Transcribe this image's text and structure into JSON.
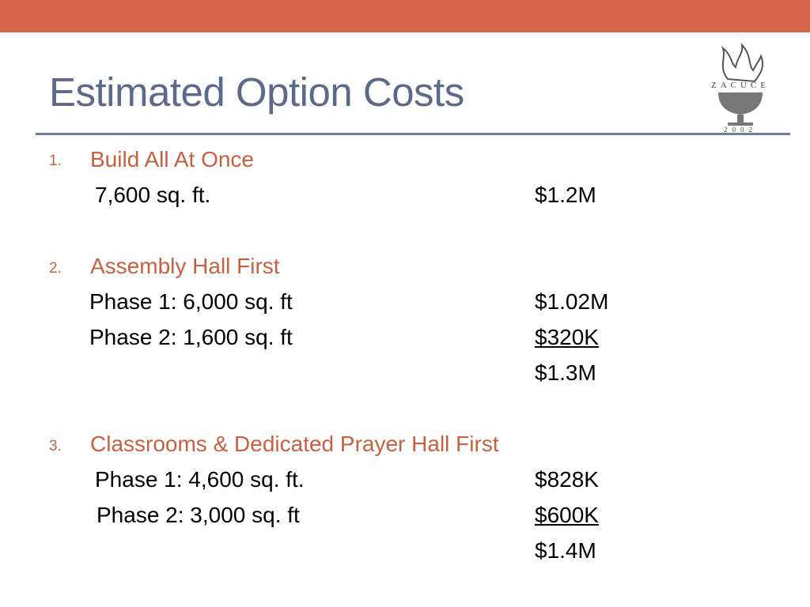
{
  "header": {
    "title": "Estimated Option Costs"
  },
  "logo": {
    "name": "ZACUCE",
    "year": "2002"
  },
  "options": [
    {
      "number": "1.",
      "title": "Build All At Once",
      "rows": [
        {
          "label": "7,600 sq. ft.",
          "amount": "$1.2M"
        }
      ]
    },
    {
      "number": "2.",
      "title": "Assembly Hall First",
      "rows": [
        {
          "label": "Phase 1: 6,000 sq. ft",
          "amount": "$1.02M"
        },
        {
          "label": "Phase 2: 1,600 sq. ft",
          "amount": "$320K"
        }
      ],
      "total": "$1.3M"
    },
    {
      "number": "3.",
      "title": "Classrooms & Dedicated Prayer Hall First",
      "rows": [
        {
          "label": "Phase 1: 4,600 sq. ft.",
          "amount": "$828K"
        },
        {
          "label": "Phase 2: 3,000 sq. ft",
          "amount": "$600K"
        }
      ],
      "total": "$1.4M"
    }
  ]
}
